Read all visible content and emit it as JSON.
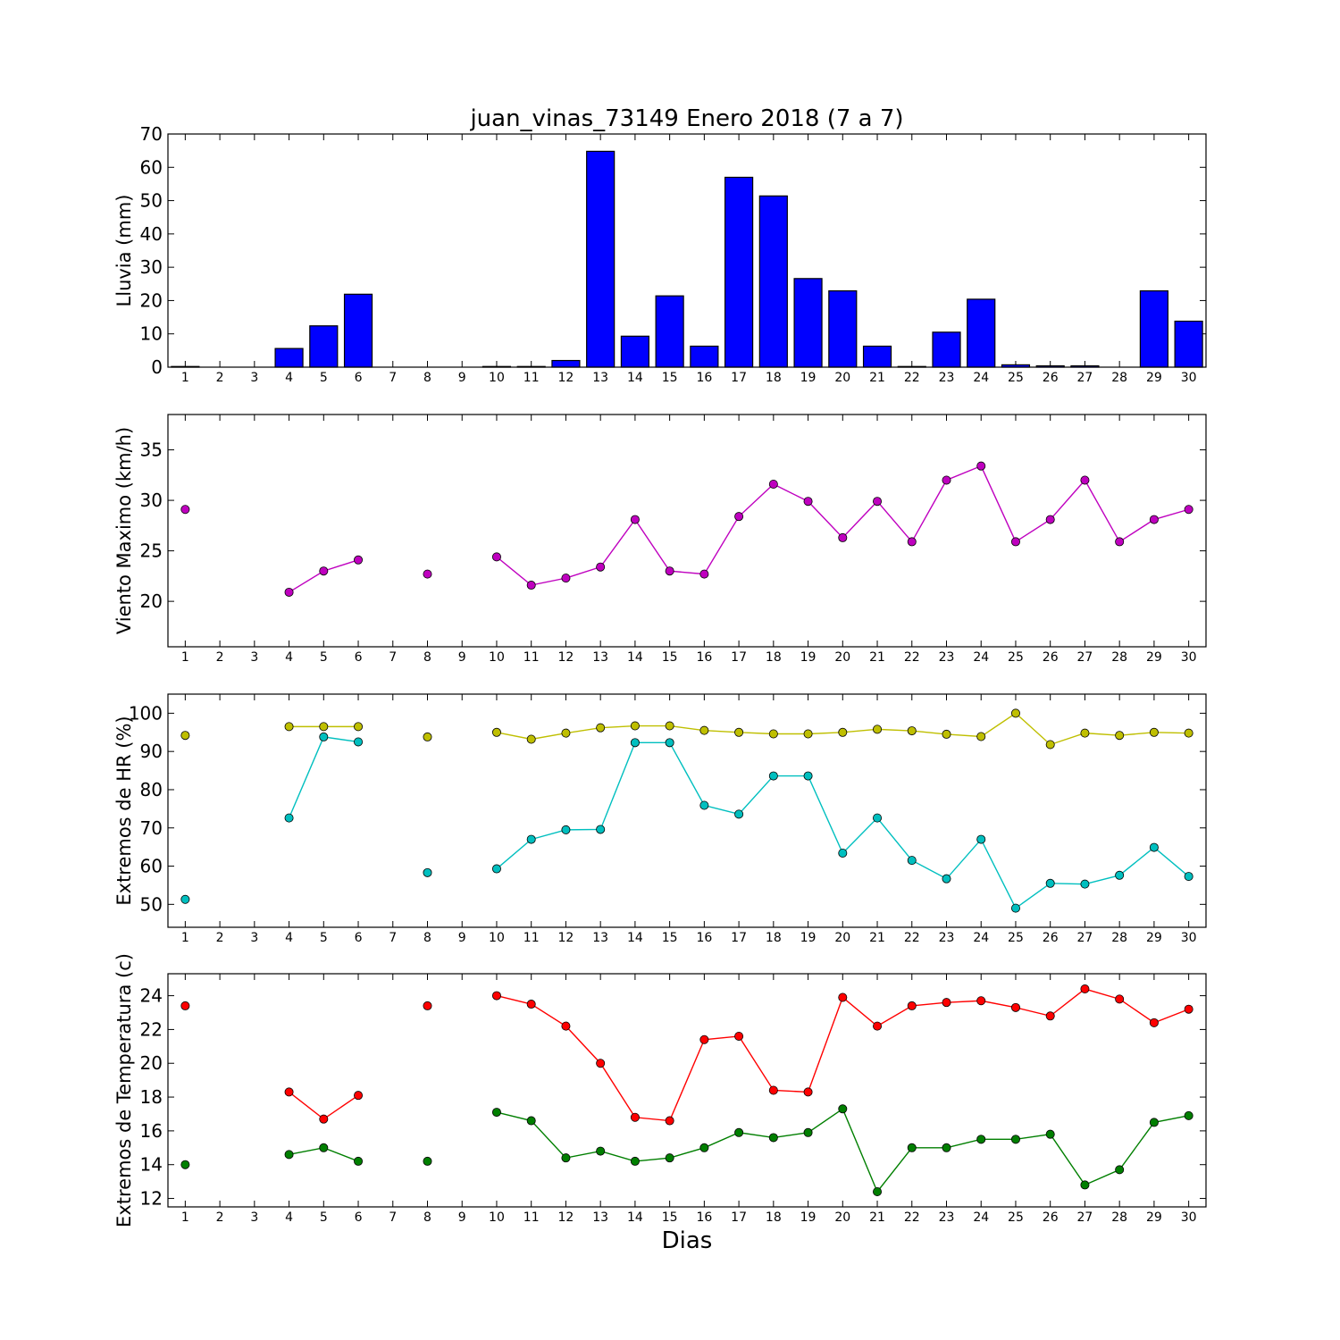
{
  "chart_data": [
    {
      "type": "bar",
      "title": "juan_vinas_73149 Enero 2018  (7 a 7)",
      "ylabel": "Lluvia (mm)",
      "ylim": [
        0,
        70
      ],
      "yticks": [
        0,
        10,
        20,
        30,
        40,
        50,
        60,
        70
      ],
      "categories": [
        "1",
        "2",
        "3",
        "4",
        "5",
        "6",
        "7",
        "8",
        "9",
        "10",
        "11",
        "12",
        "13",
        "14",
        "15",
        "16",
        "17",
        "18",
        "19",
        "20",
        "21",
        "22",
        "23",
        "24",
        "25",
        "26",
        "27",
        "28",
        "29",
        "30"
      ],
      "values": [
        0.2,
        0,
        0,
        5.6,
        12.4,
        21.9,
        0,
        0,
        0,
        0.2,
        0.2,
        2.0,
        64.8,
        9.3,
        21.4,
        6.3,
        57.0,
        51.4,
        26.6,
        22.9,
        6.3,
        0.2,
        10.5,
        20.4,
        0.7,
        0.4,
        0.4,
        0,
        22.9,
        13.8
      ],
      "color": "#0000ff",
      "grid": false
    },
    {
      "type": "line",
      "ylabel": "Viento Maximo (km/h)",
      "ylim": [
        15.5,
        38.5
      ],
      "yticks": [
        20,
        25,
        30,
        35
      ],
      "x": [
        1,
        2,
        3,
        4,
        5,
        6,
        7,
        8,
        9,
        10,
        11,
        12,
        13,
        14,
        15,
        16,
        17,
        18,
        19,
        20,
        21,
        22,
        23,
        24,
        25,
        26,
        27,
        28,
        29,
        30
      ],
      "series": [
        {
          "values": [
            29.1,
            null,
            null,
            20.9,
            23.0,
            24.1,
            null,
            22.7,
            null,
            24.4,
            21.6,
            22.3,
            23.4,
            28.1,
            23.0,
            22.7,
            28.4,
            31.6,
            29.9,
            26.3,
            29.9,
            25.9,
            32.0,
            33.4,
            25.9,
            28.1,
            32.0,
            25.9,
            28.1,
            29.1
          ],
          "color": "#bf00bf"
        }
      ],
      "grid": false
    },
    {
      "type": "line",
      "ylabel": "Extremos de HR (%)",
      "ylim": [
        44,
        105
      ],
      "yticks": [
        50,
        60,
        70,
        80,
        90,
        100
      ],
      "x": [
        1,
        2,
        3,
        4,
        5,
        6,
        7,
        8,
        9,
        10,
        11,
        12,
        13,
        14,
        15,
        16,
        17,
        18,
        19,
        20,
        21,
        22,
        23,
        24,
        25,
        26,
        27,
        28,
        29,
        30
      ],
      "series": [
        {
          "values": [
            94.2,
            null,
            null,
            96.5,
            96.5,
            96.5,
            null,
            93.8,
            null,
            95.0,
            93.2,
            94.8,
            96.2,
            96.7,
            96.7,
            95.5,
            95.0,
            94.6,
            94.6,
            95.0,
            95.8,
            95.4,
            94.5,
            93.9,
            100.0,
            91.8,
            94.8,
            94.2,
            95.0,
            94.8
          ],
          "color": "#bfbf00"
        },
        {
          "values": [
            51.3,
            null,
            null,
            72.6,
            93.8,
            92.5,
            null,
            58.3,
            null,
            59.3,
            67.0,
            69.5,
            69.6,
            92.3,
            92.3,
            75.9,
            73.6,
            83.6,
            83.6,
            63.4,
            72.6,
            61.5,
            56.7,
            67.0,
            49.0,
            55.5,
            55.3,
            57.6,
            64.9,
            57.3
          ],
          "color": "#00bfbf"
        }
      ],
      "grid": false
    },
    {
      "type": "line",
      "ylabel": "Extremos de Temperatura (c)",
      "xlabel": "Dias",
      "ylim": [
        11.5,
        25.3
      ],
      "yticks": [
        12,
        14,
        16,
        18,
        20,
        22,
        24
      ],
      "x": [
        1,
        2,
        3,
        4,
        5,
        6,
        7,
        8,
        9,
        10,
        11,
        12,
        13,
        14,
        15,
        16,
        17,
        18,
        19,
        20,
        21,
        22,
        23,
        24,
        25,
        26,
        27,
        28,
        29,
        30
      ],
      "series": [
        {
          "values": [
            23.4,
            null,
            null,
            18.3,
            16.7,
            18.1,
            null,
            23.4,
            null,
            24.0,
            23.5,
            22.2,
            20.0,
            16.8,
            16.6,
            21.4,
            21.6,
            18.4,
            18.3,
            23.9,
            22.2,
            23.4,
            23.6,
            23.7,
            23.3,
            22.8,
            24.4,
            23.8,
            22.4,
            23.2
          ],
          "color": "#ff0000"
        },
        {
          "values": [
            14.0,
            null,
            null,
            14.6,
            15.0,
            14.2,
            null,
            14.2,
            null,
            17.1,
            16.6,
            14.4,
            14.8,
            14.2,
            14.4,
            15.0,
            15.9,
            15.6,
            15.9,
            17.3,
            12.4,
            15.0,
            15.0,
            15.5,
            15.5,
            15.8,
            12.8,
            13.7,
            16.5,
            16.9
          ],
          "color": "#007f00"
        }
      ],
      "grid": false
    }
  ]
}
